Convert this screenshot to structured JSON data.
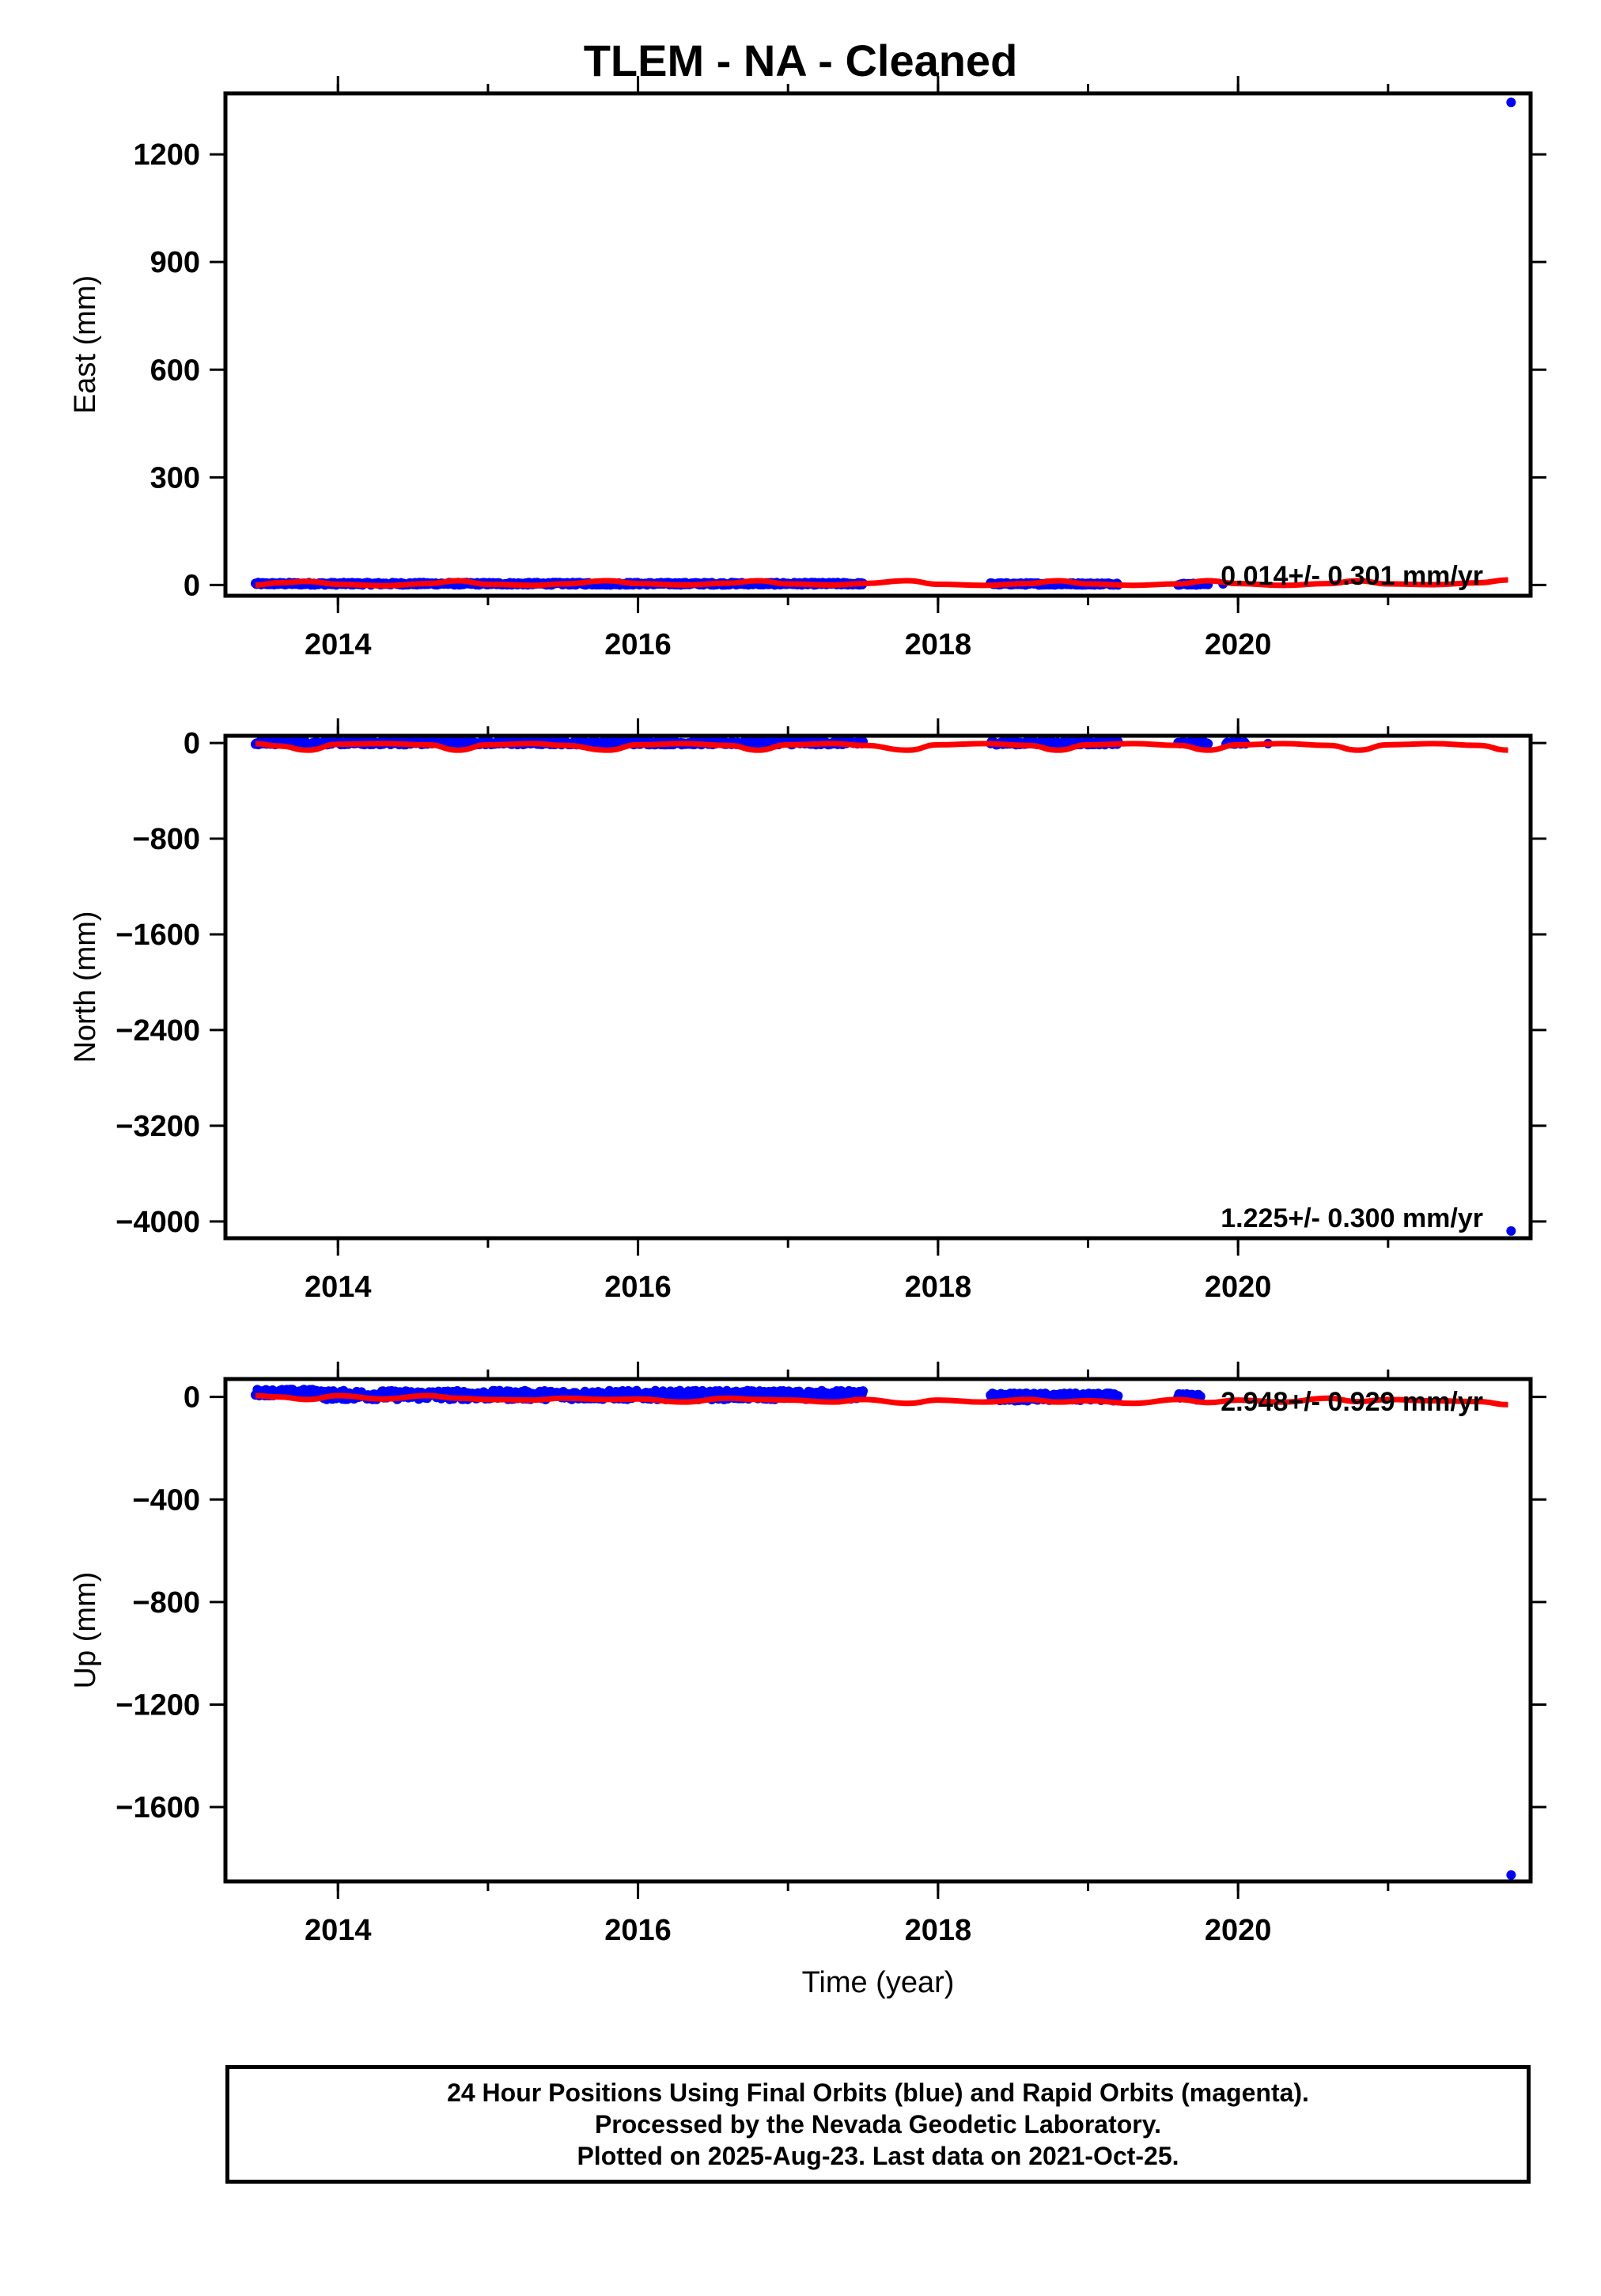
{
  "title": "TLEM  - NA - Cleaned",
  "footer": {
    "line1": "24 Hour Positions Using Final Orbits (blue) and Rapid Orbits (magenta).",
    "line2": "Processed by the Nevada Geodetic Laboratory.",
    "line3": "Plotted on 2025-Aug-23. Last data on 2021-Oct-25."
  },
  "colors": {
    "final_orbits": "#0000ff",
    "model": "#ff0000",
    "axes": "#000000"
  },
  "chart_data": [
    {
      "type": "scatter",
      "component": "east",
      "ylabel": "East (mm)",
      "xlabel": "",
      "xlim": [
        2013.25,
        2021.95
      ],
      "ylim": [
        -30,
        1370
      ],
      "xticks": [
        2014,
        2016,
        2018,
        2020
      ],
      "xtick_labels": [
        "2014",
        "2016",
        "2018",
        "2020"
      ],
      "yticks": [
        0,
        300,
        600,
        900,
        1200
      ],
      "ytick_labels": [
        "0",
        "300",
        "600",
        "900",
        "1200"
      ],
      "rate_label": "0.014+/- 0.301 mm/yr",
      "model": {
        "x": [
          2013.45,
          2013.6,
          2013.8,
          2014.0,
          2014.3,
          2014.6,
          2014.8,
          2015.0,
          2015.3,
          2015.5,
          2015.8,
          2016.0,
          2016.3,
          2016.6,
          2016.8,
          2017.0,
          2017.3,
          2017.5,
          2017.8,
          2018.0,
          2018.3,
          2018.6,
          2018.8,
          2019.0,
          2019.3,
          2019.6,
          2019.8,
          2020.0,
          2020.3,
          2020.6,
          2020.8,
          2021.0,
          2021.3,
          2021.6,
          2021.8
        ],
        "y": [
          0,
          6,
          10,
          2,
          -2,
          4,
          12,
          2,
          -1,
          3,
          12,
          4,
          0,
          5,
          12,
          3,
          0,
          4,
          12,
          2,
          -1,
          4,
          12,
          3,
          -1,
          3,
          12,
          4,
          -1,
          4,
          12,
          3,
          1,
          6,
          14
        ]
      },
      "observations": {
        "segments": [
          [
            2013.45,
            2017.5,
            0,
            7
          ],
          [
            2018.35,
            2019.2,
            0,
            6
          ],
          [
            2019.6,
            2019.8,
            0,
            5
          ]
        ],
        "points": [
          [
            2019.9,
            3
          ],
          [
            2021.82,
            1345
          ]
        ]
      }
    },
    {
      "type": "scatter",
      "component": "north",
      "ylabel": "North (mm)",
      "xlabel": "",
      "xlim": [
        2013.25,
        2021.95
      ],
      "ylim": [
        -4140,
        60
      ],
      "xticks": [
        2014,
        2016,
        2018,
        2020
      ],
      "xtick_labels": [
        "2014",
        "2016",
        "2018",
        "2020"
      ],
      "yticks": [
        0,
        -800,
        -1600,
        -2400,
        -3200,
        -4000
      ],
      "ytick_labels": [
        "0",
        "−800",
        "−1600",
        "−2400",
        "−3200",
        "−4000"
      ],
      "rate_label": "1.225+/- 0.300 mm/yr",
      "model": {
        "x": [
          2013.45,
          2013.6,
          2013.8,
          2014.0,
          2014.3,
          2014.6,
          2014.8,
          2015.0,
          2015.3,
          2015.5,
          2015.8,
          2016.0,
          2016.3,
          2016.6,
          2016.8,
          2017.0,
          2017.3,
          2017.5,
          2017.8,
          2018.0,
          2018.3,
          2018.6,
          2018.8,
          2019.0,
          2019.3,
          2019.6,
          2019.8,
          2020.0,
          2020.3,
          2020.6,
          2020.8,
          2021.0,
          2021.3,
          2021.6,
          2021.8
        ],
        "y": [
          -5,
          -25,
          -60,
          -10,
          -5,
          -15,
          -60,
          -15,
          -5,
          -20,
          -60,
          -15,
          -5,
          -20,
          -60,
          -15,
          -5,
          -20,
          -60,
          -15,
          -5,
          -20,
          -60,
          -15,
          -5,
          -20,
          -60,
          -15,
          -5,
          -20,
          -60,
          -15,
          -5,
          -20,
          -60
        ]
      },
      "observations": {
        "segments": [
          [
            2013.45,
            2017.5,
            -15,
            15
          ],
          [
            2018.35,
            2019.2,
            -15,
            12
          ],
          [
            2019.6,
            2019.8,
            -12,
            10
          ],
          [
            2019.92,
            2020.05,
            -10,
            8
          ]
        ],
        "points": [
          [
            2020.2,
            -5
          ],
          [
            2021.82,
            -4080
          ]
        ]
      }
    },
    {
      "type": "scatter",
      "component": "up",
      "ylabel": "Up (mm)",
      "xlabel": "Time (year)",
      "xlim": [
        2013.25,
        2021.95
      ],
      "ylim": [
        -1890,
        70
      ],
      "xticks": [
        2014,
        2016,
        2018,
        2020
      ],
      "xtick_labels": [
        "2014",
        "2016",
        "2018",
        "2020"
      ],
      "yticks": [
        0,
        -400,
        -800,
        -1200,
        -1600
      ],
      "ytick_labels": [
        "0",
        "−400",
        "−800",
        "−1200",
        "−1600"
      ],
      "rate_label": "2.948+/- 0.929 mm/yr",
      "model": {
        "x": [
          2013.45,
          2013.6,
          2013.8,
          2014.0,
          2014.3,
          2014.6,
          2014.8,
          2015.0,
          2015.3,
          2015.5,
          2015.8,
          2016.0,
          2016.3,
          2016.6,
          2016.8,
          2017.0,
          2017.3,
          2017.5,
          2017.8,
          2018.0,
          2018.3,
          2018.6,
          2018.8,
          2019.0,
          2019.3,
          2019.6,
          2019.8,
          2020.0,
          2020.3,
          2020.6,
          2020.8,
          2021.0,
          2021.3,
          2021.6,
          2021.8
        ],
        "y": [
          5,
          0,
          -10,
          5,
          -8,
          5,
          -5,
          -10,
          -12,
          -5,
          -10,
          -8,
          -20,
          -5,
          -10,
          -12,
          -20,
          -10,
          -25,
          -12,
          -20,
          -10,
          -20,
          -15,
          -25,
          -10,
          -22,
          -12,
          -20,
          -5,
          -18,
          -10,
          -15,
          -18,
          -30
        ]
      },
      "observations": {
        "segments": [
          [
            2013.45,
            2013.9,
            5,
            30
          ],
          [
            2013.9,
            2017.5,
            -10,
            25
          ],
          [
            2018.35,
            2019.2,
            -15,
            15
          ],
          [
            2019.6,
            2019.75,
            -12,
            12
          ]
        ],
        "points": [
          [
            2021.82,
            -1865
          ]
        ]
      }
    }
  ]
}
